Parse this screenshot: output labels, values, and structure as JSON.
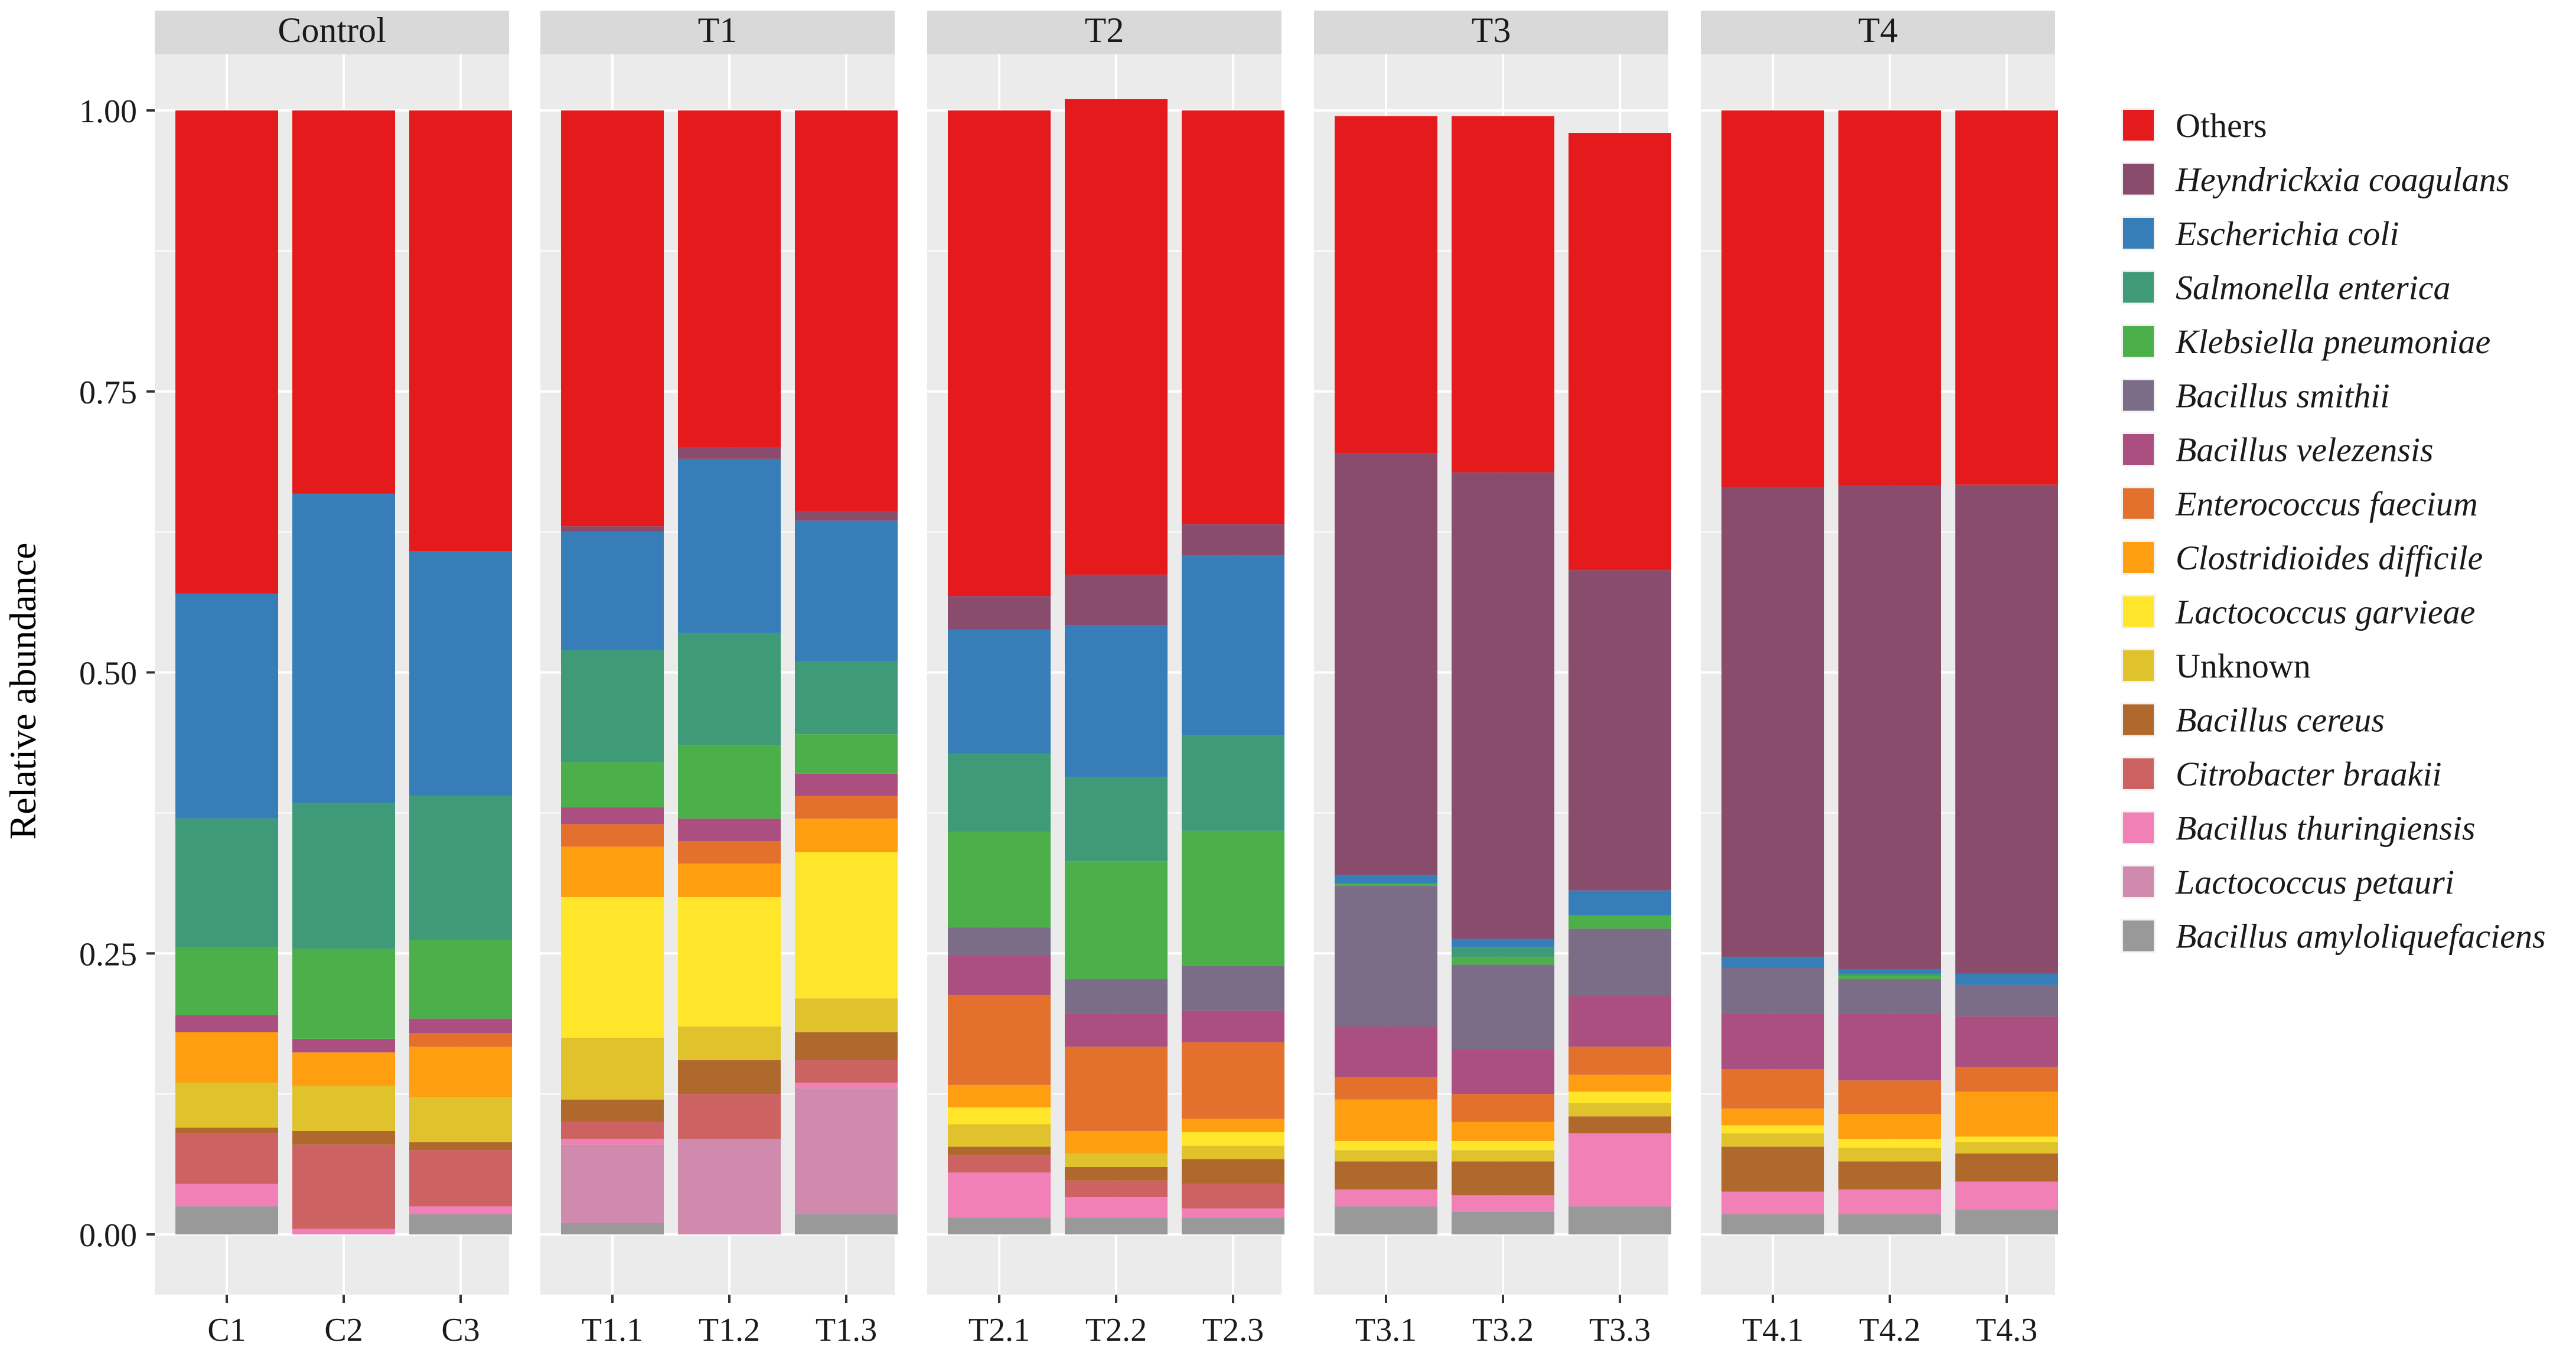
{
  "chart_data": {
    "type": "bar",
    "stacked": true,
    "faceted": true,
    "ylabel": "Relative abundance",
    "xlabel": "",
    "ylim": [
      0,
      1
    ],
    "yticks": [
      "0.00",
      "0.25",
      "0.50",
      "0.75",
      "1.00"
    ],
    "ytick_values": [
      0,
      0.25,
      0.5,
      0.75,
      1.0
    ],
    "grid": true,
    "legend_position": "right",
    "legend": [
      {
        "label": "Others",
        "color": "#E41A1C",
        "italic": false
      },
      {
        "label": "Heyndrickxia coagulans",
        "color": "#8A4C6C",
        "italic": true
      },
      {
        "label": "Escherichia coli",
        "color": "#377EB8",
        "italic": true
      },
      {
        "label": "Salmonella enterica",
        "color": "#3F9A78",
        "italic": true
      },
      {
        "label": "Klebsiella pneumoniae",
        "color": "#4DAF4A",
        "italic": true
      },
      {
        "label": "Bacillus smithii",
        "color": "#7B6C88",
        "italic": true
      },
      {
        "label": "Bacillus velezensis",
        "color": "#AA4F80",
        "italic": true
      },
      {
        "label": "Enterococcus faecium",
        "color": "#E3702C",
        "italic": true
      },
      {
        "label": "Clostridioides difficile",
        "color": "#FF9E10",
        "italic": true
      },
      {
        "label": "Lactococcus garvieae",
        "color": "#FFE62A",
        "italic": true
      },
      {
        "label": "Unknown",
        "color": "#E0C22D",
        "italic": false
      },
      {
        "label": "Bacillus cereus",
        "color": "#B0692C",
        "italic": true
      },
      {
        "label": "Citrobacter braakii",
        "color": "#CC6362",
        "italic": true
      },
      {
        "label": "Bacillus thuringiensis",
        "color": "#F080B6",
        "italic": true
      },
      {
        "label": "Lactococcus petauri",
        "color": "#CF8AAD",
        "italic": true
      },
      {
        "label": "Bacillus amyloliquefaciens",
        "color": "#999999",
        "italic": true
      }
    ],
    "stack_order_bottom_to_top": [
      "Bacillus amyloliquefaciens",
      "Lactococcus petauri",
      "Bacillus thuringiensis",
      "Citrobacter braakii",
      "Bacillus cereus",
      "Unknown",
      "Lactococcus garvieae",
      "Clostridioides difficile",
      "Enterococcus faecium",
      "Bacillus velezensis",
      "Bacillus smithii",
      "Klebsiella pneumoniae",
      "Salmonella enterica",
      "Escherichia coli",
      "Heyndrickxia coagulans",
      "Others"
    ],
    "facets": [
      {
        "title": "Control",
        "samples": [
          {
            "label": "C1",
            "values": [
              0.025,
              0.0,
              0.02,
              0.045,
              0.005,
              0.04,
              0.0,
              0.045,
              0.0,
              0.015,
              0.0,
              0.06,
              0.115,
              0.2,
              0.0,
              0.43
            ]
          },
          {
            "label": "C2",
            "values": [
              0.0,
              0.0,
              0.005,
              0.075,
              0.012,
              0.04,
              0.0,
              0.03,
              0.0,
              0.012,
              0.0,
              0.08,
              0.13,
              0.275,
              0.0,
              0.341
            ]
          },
          {
            "label": "C3",
            "values": [
              0.018,
              0.0,
              0.007,
              0.05,
              0.007,
              0.04,
              0.0,
              0.045,
              0.012,
              0.013,
              0.0,
              0.07,
              0.128,
              0.218,
              0.0,
              0.392
            ]
          }
        ]
      },
      {
        "title": "T1",
        "samples": [
          {
            "label": "T1.1",
            "values": [
              0.01,
              0.07,
              0.005,
              0.015,
              0.02,
              0.055,
              0.125,
              0.045,
              0.02,
              0.015,
              0.0,
              0.04,
              0.1,
              0.105,
              0.005,
              0.37
            ]
          },
          {
            "label": "T1.2",
            "values": [
              0.0,
              0.085,
              0.0,
              0.04,
              0.03,
              0.03,
              0.115,
              0.03,
              0.02,
              0.02,
              0.0,
              0.065,
              0.1,
              0.155,
              0.01,
              0.3
            ]
          },
          {
            "label": "T1.3",
            "values": [
              0.018,
              0.112,
              0.005,
              0.02,
              0.025,
              0.03,
              0.13,
              0.03,
              0.02,
              0.02,
              0.0,
              0.035,
              0.065,
              0.125,
              0.008,
              0.357
            ]
          }
        ]
      },
      {
        "title": "T2",
        "samples": [
          {
            "label": "T2.1",
            "values": [
              0.015,
              0.0,
              0.04,
              0.015,
              0.008,
              0.02,
              0.015,
              0.02,
              0.08,
              0.035,
              0.025,
              0.085,
              0.07,
              0.11,
              0.03,
              0.432
            ]
          },
          {
            "label": "T2.2",
            "values": [
              0.015,
              0.0,
              0.018,
              0.015,
              0.012,
              0.012,
              0.0,
              0.02,
              0.075,
              0.03,
              0.03,
              0.105,
              0.075,
              0.135,
              0.045,
              0.423
            ]
          },
          {
            "label": "T2.3",
            "values": [
              0.015,
              0.0,
              0.008,
              0.022,
              0.022,
              0.012,
              0.012,
              0.012,
              0.068,
              0.028,
              0.04,
              0.12,
              0.085,
              0.16,
              0.028,
              0.368
            ]
          }
        ]
      },
      {
        "title": "T3",
        "samples": [
          {
            "label": "T3.1",
            "values": [
              0.025,
              0.0,
              0.015,
              0.0,
              0.025,
              0.01,
              0.008,
              0.037,
              0.02,
              0.045,
              0.125,
              0.002,
              0.0,
              0.008,
              0.375,
              0.3
            ]
          },
          {
            "label": "T3.2",
            "values": [
              0.02,
              0.0,
              0.015,
              0.0,
              0.03,
              0.01,
              0.008,
              0.017,
              0.025,
              0.04,
              0.075,
              0.007,
              0.008,
              0.008,
              0.415,
              0.317
            ]
          },
          {
            "label": "T3.3",
            "values": [
              0.025,
              0.0,
              0.065,
              0.0,
              0.015,
              0.012,
              0.01,
              0.015,
              0.025,
              0.045,
              0.06,
              0.012,
              0.0,
              0.022,
              0.285,
              0.389
            ]
          }
        ]
      },
      {
        "title": "T4",
        "samples": [
          {
            "label": "T4.1",
            "values": [
              0.018,
              0.0,
              0.02,
              0.0,
              0.04,
              0.012,
              0.007,
              0.015,
              0.035,
              0.05,
              0.04,
              0.0,
              0.0,
              0.01,
              0.418,
              0.335
            ]
          },
          {
            "label": "T4.2",
            "values": [
              0.018,
              0.0,
              0.022,
              0.0,
              0.025,
              0.012,
              0.008,
              0.022,
              0.03,
              0.06,
              0.03,
              0.003,
              0.002,
              0.004,
              0.43,
              0.334
            ]
          },
          {
            "label": "T4.3",
            "values": [
              0.022,
              0.0,
              0.025,
              0.0,
              0.025,
              0.01,
              0.005,
              0.04,
              0.022,
              0.045,
              0.028,
              0.0,
              0.0,
              0.01,
              0.435,
              0.333
            ]
          }
        ]
      }
    ]
  }
}
